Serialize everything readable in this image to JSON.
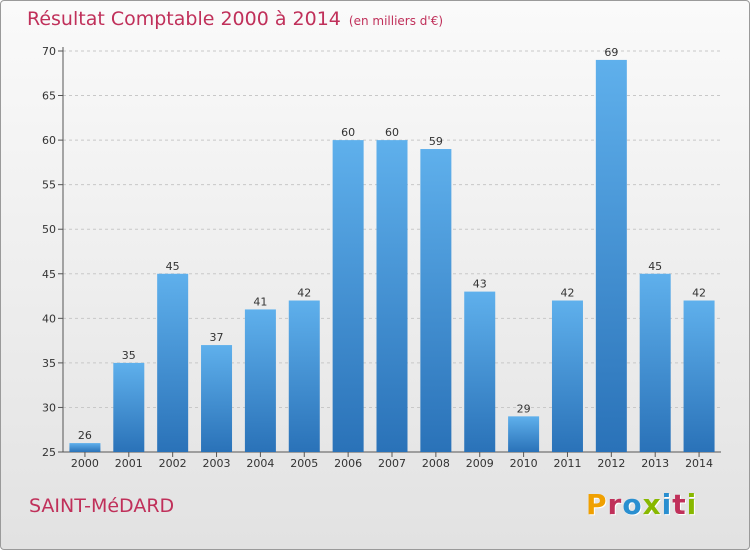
{
  "header": {
    "title": "Résultat Comptable 2000 à 2014",
    "unit": "(en milliers d'€)"
  },
  "footer": {
    "town": "SAINT-MéDARD",
    "logo": "Proxiti",
    "logo_colors": [
      "#f0a000",
      "#c0305a",
      "#2a8fd0",
      "#88b800",
      "#2a8fd0",
      "#c0305a",
      "#88b800"
    ]
  },
  "chart_data": {
    "type": "bar",
    "categories": [
      "2000",
      "2001",
      "2002",
      "2003",
      "2004",
      "2005",
      "2006",
      "2007",
      "2008",
      "2009",
      "2010",
      "2011",
      "2012",
      "2013",
      "2014"
    ],
    "values": [
      26,
      35,
      45,
      37,
      41,
      42,
      60,
      60,
      59,
      43,
      29,
      42,
      69,
      45,
      42
    ],
    "title": "Résultat Comptable 2000 à 2014",
    "subtitle": "(en milliers d'€)",
    "xlabel": "",
    "ylabel": "",
    "ylim": [
      25,
      70
    ],
    "yticks": [
      25,
      30,
      35,
      40,
      45,
      50,
      55,
      60,
      65,
      70
    ],
    "grid": "horizontal dashed",
    "legend": "none",
    "bar_color": "#3f93d6",
    "bar_color_light": "#5fb0ec",
    "bar_color_dark": "#2a72b8"
  }
}
